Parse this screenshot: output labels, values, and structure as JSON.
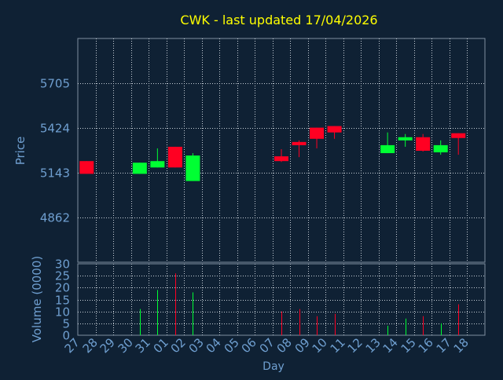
{
  "chart_data": [
    {
      "type": "candlestick",
      "title": "CWK - last updated 17/04/2026",
      "ylabel": "Price",
      "xlabel": "Day",
      "y_ticks": [
        4862,
        5143,
        5424,
        5705
      ],
      "ylim": [
        4580,
        5985
      ],
      "grid": true,
      "x_ticks": [
        "27",
        "28",
        "29",
        "30",
        "31",
        "01",
        "02",
        "03",
        "04",
        "05",
        "06",
        "07",
        "08",
        "09",
        "10",
        "11",
        "12",
        "13",
        "14",
        "15",
        "16",
        "17",
        "18"
      ],
      "candles": [
        {
          "day": "27",
          "open": 5215,
          "high": 5215,
          "low": 5135,
          "close": 5135
        },
        {
          "day": "30",
          "open": 5135,
          "high": 5205,
          "low": 5135,
          "close": 5205
        },
        {
          "day": "31",
          "open": 5175,
          "high": 5295,
          "low": 5175,
          "close": 5215
        },
        {
          "day": "01",
          "open": 5305,
          "high": 5305,
          "low": 5175,
          "close": 5175
        },
        {
          "day": "02",
          "open": 5090,
          "high": 5265,
          "low": 5090,
          "close": 5250
        },
        {
          "day": "07",
          "open": 5245,
          "high": 5290,
          "low": 5210,
          "close": 5215
        },
        {
          "day": "08",
          "open": 5335,
          "high": 5345,
          "low": 5240,
          "close": 5315
        },
        {
          "day": "09",
          "open": 5425,
          "high": 5425,
          "low": 5295,
          "close": 5355
        },
        {
          "day": "10",
          "open": 5435,
          "high": 5435,
          "low": 5355,
          "close": 5395
        },
        {
          "day": "13",
          "open": 5265,
          "high": 5395,
          "low": 5265,
          "close": 5315
        },
        {
          "day": "14",
          "open": 5345,
          "high": 5385,
          "low": 5305,
          "close": 5365
        },
        {
          "day": "15",
          "open": 5365,
          "high": 5385,
          "low": 5275,
          "close": 5280
        },
        {
          "day": "16",
          "open": 5270,
          "high": 5345,
          "low": 5255,
          "close": 5315
        },
        {
          "day": "17",
          "open": 5390,
          "high": 5390,
          "low": 5255,
          "close": 5360
        }
      ]
    },
    {
      "type": "bar",
      "ylabel": "Volume (0000)",
      "xlabel": "Day",
      "ylim": [
        0,
        30
      ],
      "y_ticks": [
        0,
        5,
        10,
        15,
        20,
        25,
        30
      ],
      "x_ticks": [
        "27",
        "28",
        "29",
        "30",
        "31",
        "01",
        "02",
        "03",
        "04",
        "05",
        "06",
        "07",
        "08",
        "09",
        "10",
        "11",
        "12",
        "13",
        "14",
        "15",
        "16",
        "17",
        "18"
      ],
      "bars": [
        {
          "day": "30",
          "value": 11,
          "direction": "up"
        },
        {
          "day": "31",
          "value": 19,
          "direction": "up"
        },
        {
          "day": "01",
          "value": 26,
          "direction": "down"
        },
        {
          "day": "02",
          "value": 18,
          "direction": "up"
        },
        {
          "day": "07",
          "value": 10,
          "direction": "down"
        },
        {
          "day": "08",
          "value": 11,
          "direction": "down"
        },
        {
          "day": "09",
          "value": 8,
          "direction": "down"
        },
        {
          "day": "10",
          "value": 9,
          "direction": "down"
        },
        {
          "day": "13",
          "value": 4,
          "direction": "up"
        },
        {
          "day": "14",
          "value": 7,
          "direction": "up"
        },
        {
          "day": "15",
          "value": 8,
          "direction": "down"
        },
        {
          "day": "16",
          "value": 5,
          "direction": "up"
        },
        {
          "day": "17",
          "value": 13,
          "direction": "down"
        }
      ]
    }
  ],
  "colors": {
    "background": "#0f2134",
    "plot_border": "#7f8f9f",
    "grid": "#c8d0d8",
    "title": "#ffff00",
    "axis_text": "#6f9fd0",
    "up": "#00ff33",
    "down": "#ff0022"
  }
}
